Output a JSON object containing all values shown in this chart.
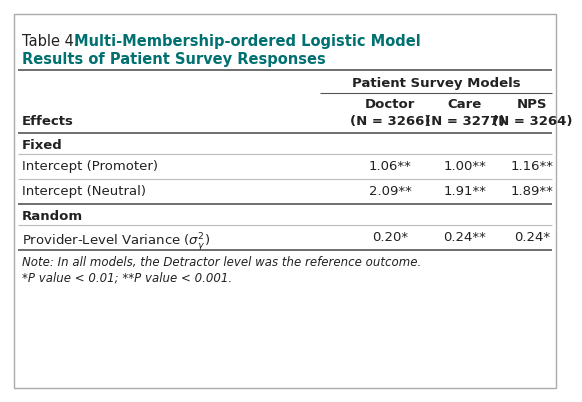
{
  "title_plain": "Table 4. ",
  "title_bold_line1": "Multi-Membership-ordered Logistic Model",
  "title_bold_line2": "Results of Patient Survey Responses",
  "title_color": "#007070",
  "title_plain_color": "#222222",
  "subtitle": "Patient Survey Models",
  "col_header_line1": [
    "Doctor",
    "Care",
    "NPS"
  ],
  "col_header_line2": [
    "(N = 3266)",
    "(N = 3277)",
    "(N = 3264)"
  ],
  "row_label_header": "Effects",
  "fixed_label": "Fixed",
  "random_label": "Random",
  "row_labels": [
    "Intercept (Promoter)",
    "Intercept (Neutral)",
    "Provider-Level Variance"
  ],
  "row_values": [
    [
      "1.06**",
      "1.00**",
      "1.16**"
    ],
    [
      "2.09**",
      "1.91**",
      "1.89**"
    ],
    [
      "0.20*",
      "0.24**",
      "0.24*"
    ]
  ],
  "note_line1": "Note: In all models, the Detractor level was the reference outcome.",
  "note_line2": "*P value < 0.01; **P value < 0.001.",
  "bg_color": "#ffffff",
  "line_color_light": "#bbbbbb",
  "line_color_dark": "#555555",
  "text_color": "#222222",
  "font_size_title": 10.5,
  "font_size_body": 9.5,
  "font_size_note": 8.5
}
